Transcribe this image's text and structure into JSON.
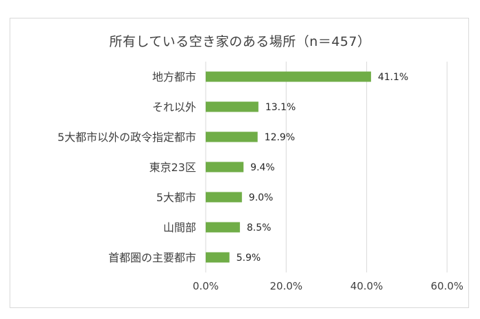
{
  "chart_data": {
    "type": "bar",
    "orientation": "horizontal",
    "title": "所有している空き家のある場所（n＝457）",
    "categories": [
      "地方都市",
      "それ以外",
      "5大都市以外の政令指定都市",
      "東京23区",
      "5大都市",
      "山間部",
      "首都圏の主要都市"
    ],
    "values": [
      41.1,
      13.1,
      12.9,
      9.4,
      9.0,
      8.5,
      5.9
    ],
    "value_labels": [
      "41.1%",
      "13.1%",
      "12.9%",
      "9.4%",
      "9.0%",
      "8.5%",
      "5.9%"
    ],
    "xlim": [
      0,
      60
    ],
    "xticks": [
      0,
      20,
      40,
      60
    ],
    "xtick_labels": [
      "0.0%",
      "20.0%",
      "40.0%",
      "60.0%"
    ],
    "xlabel": "",
    "ylabel": "",
    "grid": true,
    "legend": "none",
    "bar_color": "#70ad47",
    "grid_color": "#d9d9d9",
    "text_color": "#404040"
  }
}
